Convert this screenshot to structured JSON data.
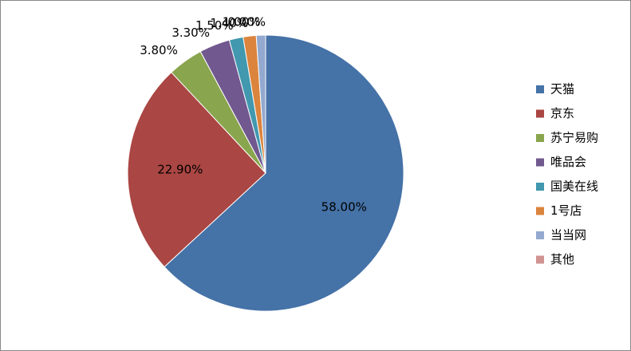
{
  "chart_data": {
    "type": "pie",
    "categories": [
      "天猫",
      "京东",
      "苏宁易购",
      "唯品会",
      "国美在线",
      "1号店",
      "当当网",
      "其他"
    ],
    "values": [
      58.0,
      22.9,
      3.8,
      3.3,
      1.5,
      1.4,
      1.0,
      0.0
    ],
    "value_labels": [
      "58.00%",
      "22.90%",
      "3.80%",
      "3.30%",
      "1.50%",
      "1.40%",
      "1.00%",
      "0.00%"
    ],
    "colors": [
      "#4572A7",
      "#AA4643",
      "#89A54E",
      "#71588F",
      "#4198AF",
      "#DB843D",
      "#93A9CF",
      "#D19392"
    ],
    "legend": "right"
  }
}
